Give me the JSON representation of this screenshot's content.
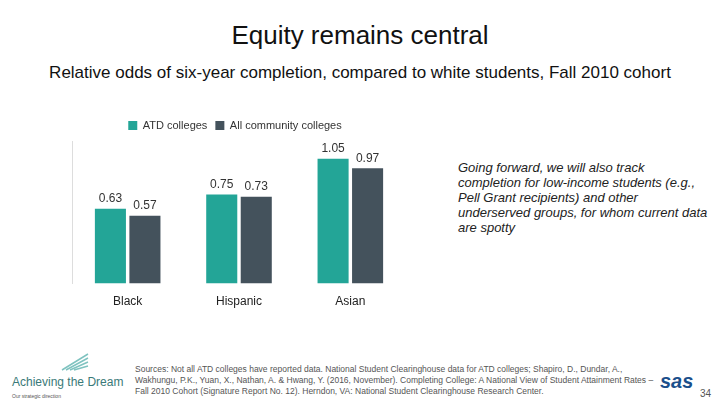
{
  "chart_data": {
    "type": "bar",
    "title": "Equity remains central",
    "subtitle": "Relative odds of six-year completion, compared to white students, Fall 2010 cohort",
    "categories": [
      "Black",
      "Hispanic",
      "Asian"
    ],
    "series": [
      {
        "name": "ATD colleges",
        "color": "#23a597",
        "values": [
          0.63,
          0.75,
          1.05
        ]
      },
      {
        "name": "All community colleges",
        "color": "#44525c",
        "values": [
          0.57,
          0.73,
          0.97
        ]
      }
    ],
    "ylim": [
      0,
      1.2
    ],
    "grid": false,
    "legend": "top",
    "data_labels": true,
    "tick_labels": "x",
    "annotations": [
      "Going forward, we will also track completion for low-income students (e.g., Pell Grant recipients) and other underserved groups, for whom current data are spotty"
    ]
  },
  "footer": {
    "sources": "Sources: Not all ATD colleges have reported data. National Student Clearinghouse data for ATD colleges; Shapiro, D., Dundar, A., Wakhungu, P.K., Yuan, X., Nathan, A. & Hwang, Y. (2016, November). Completing College: A National View of Student Attainment Rates – Fall 2010 Cohort (Signature Report No. 12). Herndon, VA: National Student Clearinghouse Research Center.",
    "logo": "Achieving the Dream",
    "logo_tagline": "Our strategic direction",
    "brand": "sas",
    "page_number": "34"
  }
}
